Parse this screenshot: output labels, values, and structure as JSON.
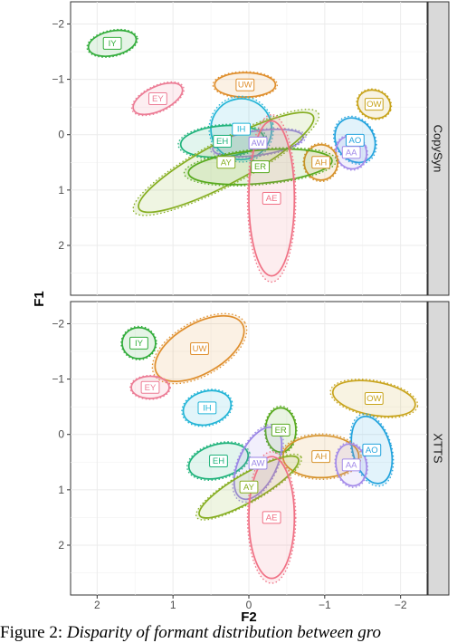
{
  "chart_data": {
    "type": "scatter",
    "xlabel": "F2",
    "ylabel": "F1",
    "x_reversed": true,
    "y_reversed": true,
    "xlim": [
      2.35,
      -2.35
    ],
    "ylim": [
      -2.4,
      2.9
    ],
    "x_ticks": [
      2,
      1,
      0,
      -1,
      -2
    ],
    "x_tick_labels": [
      "2",
      "1",
      "0",
      "−1",
      "−2"
    ],
    "y_ticks": [
      -2,
      -1,
      0,
      1,
      2
    ],
    "y_tick_labels": [
      "−2",
      "−1",
      "0",
      "1",
      "2"
    ],
    "grid": true,
    "panel_strip_position": "right",
    "phoneme_colors": {
      "AA": "#a48be9",
      "AE": "#f07185",
      "AH": "#d6922a",
      "AO": "#22a3dd",
      "AW": "#9b86e6",
      "AY": "#86ae22",
      "EH": "#1fb37b",
      "ER": "#58aa1f",
      "EY": "#ec7d96",
      "IH": "#22b4d6",
      "IY": "#33ad3c",
      "OW": "#c8a41c",
      "UW": "#df8f2e"
    },
    "panels": [
      {
        "strip_label": "CopySyn",
        "phonemes": [
          {
            "label": "IY",
            "x": 1.8,
            "y": -1.65,
            "rx": 0.32,
            "ry": 0.22,
            "angle": 12
          },
          {
            "label": "UW",
            "x": 0.05,
            "y": -0.9,
            "rx": 0.4,
            "ry": 0.22,
            "angle": 0
          },
          {
            "label": "EY",
            "x": 1.2,
            "y": -0.65,
            "rx": 0.35,
            "ry": 0.22,
            "angle": 25
          },
          {
            "label": "OW",
            "x": -1.65,
            "y": -0.55,
            "rx": 0.22,
            "ry": 0.25,
            "angle": -20
          },
          {
            "label": "IH",
            "x": 0.1,
            "y": -0.1,
            "rx": 0.4,
            "ry": 0.55,
            "angle": 10
          },
          {
            "label": "AO",
            "x": -1.4,
            "y": 0.1,
            "rx": 0.25,
            "ry": 0.42,
            "angle": 30
          },
          {
            "label": "EH",
            "x": 0.35,
            "y": 0.12,
            "rx": 0.55,
            "ry": 0.28,
            "angle": 5
          },
          {
            "label": "AW",
            "x": -0.12,
            "y": 0.15,
            "rx": 0.6,
            "ry": 0.22,
            "angle": 8
          },
          {
            "label": "AA",
            "x": -1.35,
            "y": 0.32,
            "rx": 0.2,
            "ry": 0.3,
            "angle": 20
          },
          {
            "label": "AH",
            "x": -0.95,
            "y": 0.5,
            "rx": 0.22,
            "ry": 0.32,
            "angle": 0
          },
          {
            "label": "AY",
            "x": 0.3,
            "y": 0.5,
            "rx": 1.3,
            "ry": 0.38,
            "angle": 28
          },
          {
            "label": "ER",
            "x": -0.15,
            "y": 0.58,
            "rx": 0.95,
            "ry": 0.3,
            "angle": 5
          },
          {
            "label": "AE",
            "x": -0.3,
            "y": 1.15,
            "rx": 0.3,
            "ry": 1.4,
            "angle": 0
          }
        ]
      },
      {
        "strip_label": "XTTS",
        "phonemes": [
          {
            "label": "IY",
            "x": 1.45,
            "y": -1.65,
            "rx": 0.22,
            "ry": 0.28,
            "angle": 0
          },
          {
            "label": "UW",
            "x": 0.65,
            "y": -1.55,
            "rx": 0.65,
            "ry": 0.45,
            "angle": 30
          },
          {
            "label": "EY",
            "x": 1.3,
            "y": -0.85,
            "rx": 0.25,
            "ry": 0.2,
            "angle": 0
          },
          {
            "label": "OW",
            "x": -1.65,
            "y": -0.65,
            "rx": 0.55,
            "ry": 0.3,
            "angle": -10
          },
          {
            "label": "IH",
            "x": 0.55,
            "y": -0.48,
            "rx": 0.32,
            "ry": 0.3,
            "angle": 15
          },
          {
            "label": "ER",
            "x": -0.42,
            "y": -0.08,
            "rx": 0.2,
            "ry": 0.4,
            "angle": 0
          },
          {
            "label": "AO",
            "x": -1.62,
            "y": 0.28,
            "rx": 0.25,
            "ry": 0.62,
            "angle": 15
          },
          {
            "label": "AH",
            "x": -0.95,
            "y": 0.4,
            "rx": 0.5,
            "ry": 0.38,
            "angle": 0
          },
          {
            "label": "AA",
            "x": -1.35,
            "y": 0.55,
            "rx": 0.2,
            "ry": 0.38,
            "angle": 10
          },
          {
            "label": "EH",
            "x": 0.4,
            "y": 0.48,
            "rx": 0.4,
            "ry": 0.3,
            "angle": 15
          },
          {
            "label": "AW",
            "x": -0.12,
            "y": 0.52,
            "rx": 0.25,
            "ry": 0.7,
            "angle": -25
          },
          {
            "label": "AY",
            "x": 0.0,
            "y": 0.95,
            "rx": 0.75,
            "ry": 0.25,
            "angle": 30
          },
          {
            "label": "AE",
            "x": -0.3,
            "y": 1.5,
            "rx": 0.3,
            "ry": 1.1,
            "angle": 0
          }
        ]
      }
    ]
  },
  "caption": {
    "lead": "Figure 2:",
    "text": "Disparity of formant distribution between gro"
  }
}
